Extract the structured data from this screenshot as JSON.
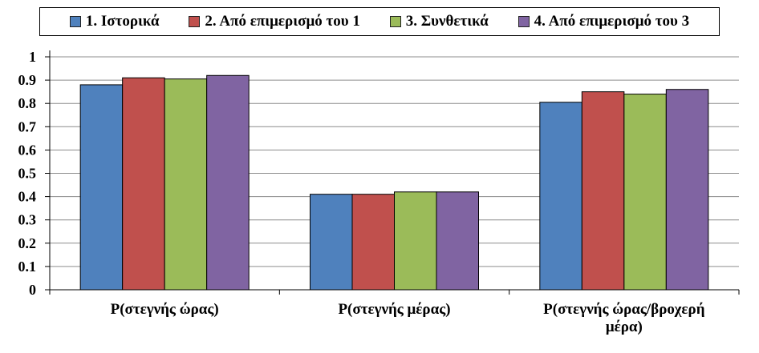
{
  "chart_data": {
    "type": "bar",
    "categories": [
      [
        "P(στεγνής ώρας)"
      ],
      [
        "P(στεγνής μέρας)"
      ],
      [
        "P(στεγνής ώρας/βροχερή",
        "μέρα)"
      ]
    ],
    "series": [
      {
        "name": "1. Ιστορικά",
        "color": "#4F81BD",
        "values": [
          0.88,
          0.41,
          0.805
        ]
      },
      {
        "name": "2. Από επιμερισμό του 1",
        "color": "#C0504D",
        "values": [
          0.91,
          0.41,
          0.85
        ]
      },
      {
        "name": "3. Συνθετικά",
        "color": "#9BBB59",
        "values": [
          0.905,
          0.42,
          0.84
        ]
      },
      {
        "name": "4. Από επιμερισμό του 3",
        "color": "#8064A2",
        "values": [
          0.92,
          0.42,
          0.86
        ]
      }
    ],
    "yticks": [
      "0",
      "0.1",
      "0.2",
      "0.3",
      "0.4",
      "0.5",
      "0.6",
      "0.7",
      "0.8",
      "0.9",
      "1"
    ],
    "ylim": [
      0,
      1
    ],
    "grid": true,
    "legend_position": "top"
  }
}
